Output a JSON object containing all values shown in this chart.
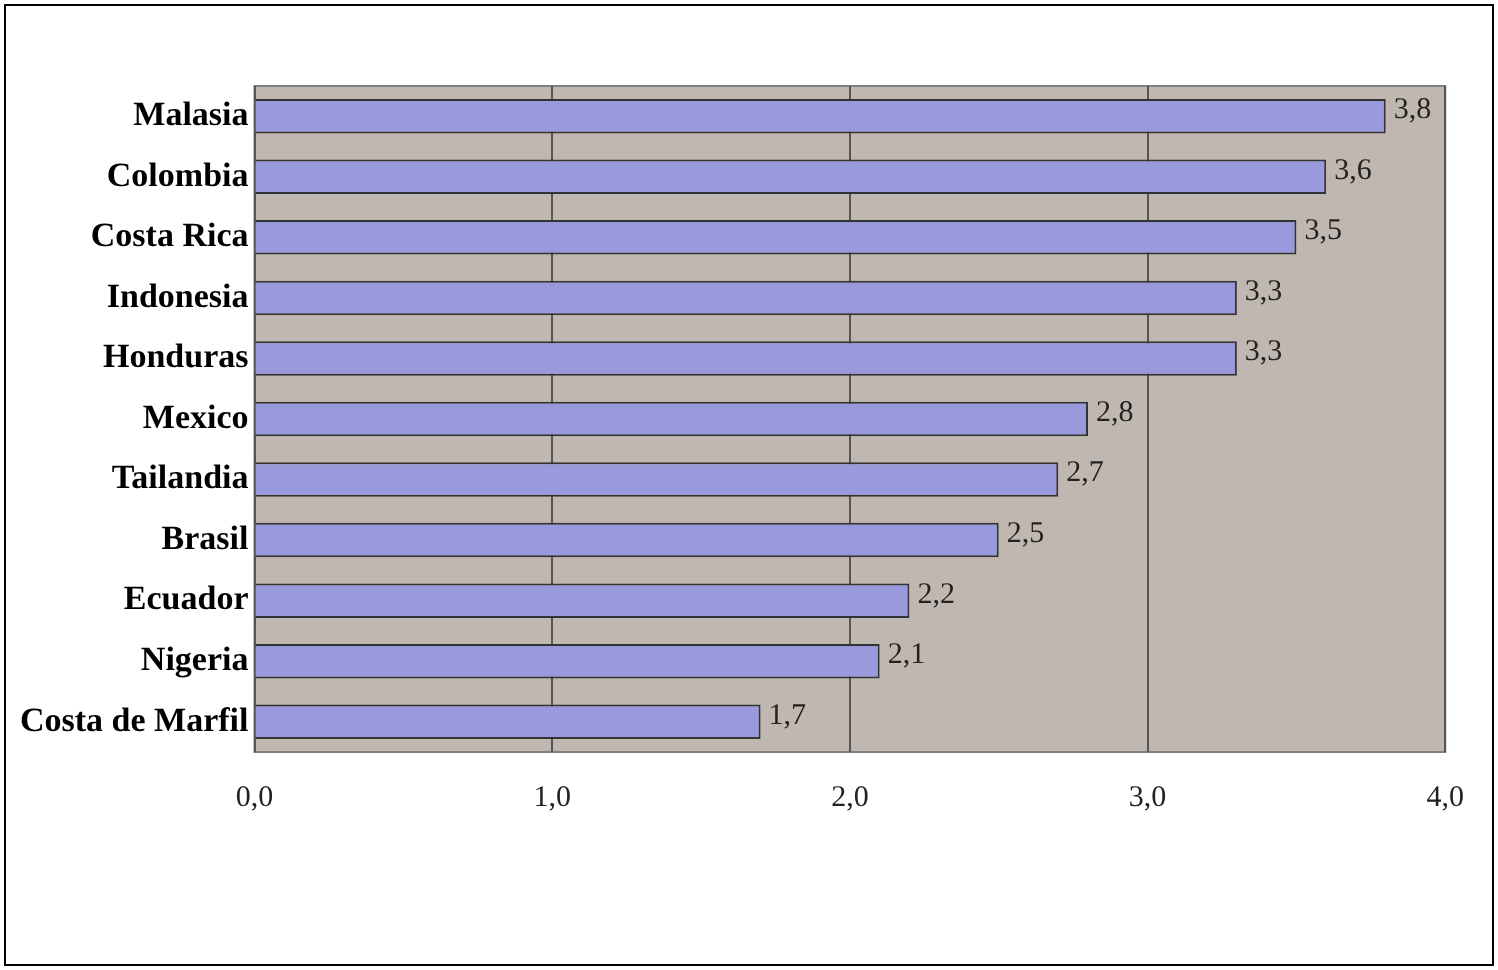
{
  "chart_data": {
    "type": "bar",
    "orientation": "horizontal",
    "categories": [
      "Malasia",
      "Colombia",
      "Costa Rica",
      "Indonesia",
      "Honduras",
      "Mexico",
      "Tailandia",
      "Brasil",
      "Ecuador",
      "Nigeria",
      "Costa de Marfil"
    ],
    "values": [
      3.8,
      3.6,
      3.5,
      3.3,
      3.3,
      2.8,
      2.7,
      2.5,
      2.2,
      2.1,
      1.7
    ],
    "value_labels": [
      "3,8",
      "3,6",
      "3,5",
      "3,3",
      "3,3",
      "2,8",
      "2,7",
      "2,5",
      "2,2",
      "2,1",
      "1,7"
    ],
    "color": "#9999dd",
    "xlim": [
      0,
      4
    ],
    "xticks": [
      {
        "value": 0,
        "label": "0,0"
      },
      {
        "value": 1,
        "label": "1,0"
      },
      {
        "value": 2,
        "label": "2,0"
      },
      {
        "value": 3,
        "label": "3,0"
      },
      {
        "value": 4,
        "label": "4,0"
      }
    ],
    "grid": "x",
    "legend": false
  }
}
